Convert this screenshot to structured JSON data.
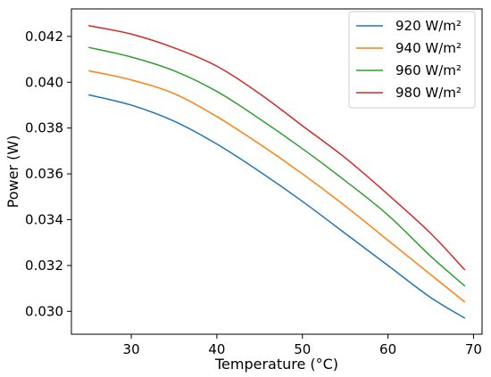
{
  "chart_data": {
    "type": "line",
    "xlabel": "Temperature (°C)",
    "ylabel": "Power (W)",
    "xlim": [
      23,
      71
    ],
    "ylim": [
      0.029,
      0.0432
    ],
    "xticks": [
      30,
      40,
      50,
      60,
      70
    ],
    "yticks": [
      0.03,
      0.032,
      0.034,
      0.036,
      0.038,
      0.04,
      0.042
    ],
    "ytick_labels": [
      "0.030",
      "0.032",
      "0.034",
      "0.036",
      "0.038",
      "0.040",
      "0.042"
    ],
    "grid": false,
    "legend_position": "top-right",
    "x": [
      25,
      30,
      35,
      40,
      45,
      50,
      55,
      60,
      65,
      69
    ],
    "series": [
      {
        "name": "920 W/m²",
        "color": "#1f77b4",
        "values": [
          0.03945,
          0.039,
          0.0383,
          0.0373,
          0.0361,
          0.0348,
          0.0334,
          0.032,
          0.0306,
          0.0297
        ]
      },
      {
        "name": "940 W/m²",
        "color": "#ff7f0e",
        "values": [
          0.0405,
          0.0401,
          0.0395,
          0.0385,
          0.0373,
          0.036,
          0.0346,
          0.0331,
          0.0316,
          0.0304
        ]
      },
      {
        "name": "960 W/m²",
        "color": "#2ca02c",
        "values": [
          0.04152,
          0.0411,
          0.0405,
          0.0396,
          0.0384,
          0.0371,
          0.0357,
          0.0342,
          0.0324,
          0.0311
        ]
      },
      {
        "name": "980 W/m²",
        "color": "#d62728",
        "values": [
          0.04247,
          0.0421,
          0.0415,
          0.0407,
          0.0395,
          0.0381,
          0.0367,
          0.0351,
          0.0334,
          0.0318
        ]
      }
    ]
  }
}
